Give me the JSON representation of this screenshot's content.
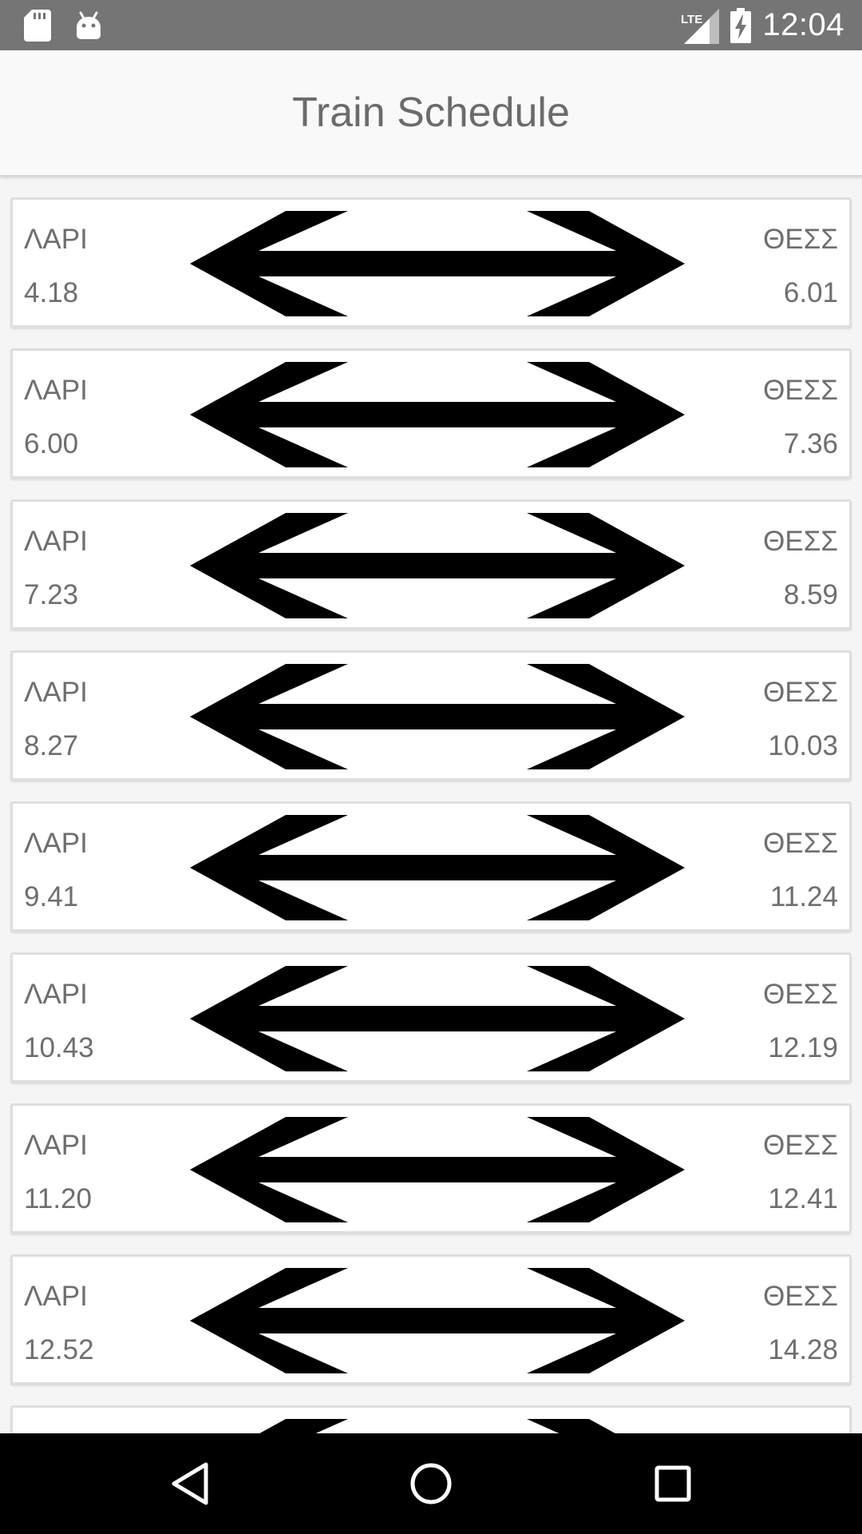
{
  "status_bar": {
    "time": "12:04",
    "network_label": "LTE",
    "left_icons": [
      "sd-card-icon",
      "android-icon"
    ],
    "right_icons": [
      "signal-icon",
      "battery-charging-icon"
    ]
  },
  "app_bar": {
    "title": "Train Schedule"
  },
  "schedule": [
    {
      "from": "ΛΑΡΙ",
      "depart": "4.18",
      "to": "ΘΕΣΣ",
      "arrive": "6.01"
    },
    {
      "from": "ΛΑΡΙ",
      "depart": "6.00",
      "to": "ΘΕΣΣ",
      "arrive": "7.36"
    },
    {
      "from": "ΛΑΡΙ",
      "depart": "7.23",
      "to": "ΘΕΣΣ",
      "arrive": "8.59"
    },
    {
      "from": "ΛΑΡΙ",
      "depart": "8.27",
      "to": "ΘΕΣΣ",
      "arrive": "10.03"
    },
    {
      "from": "ΛΑΡΙ",
      "depart": "9.41",
      "to": "ΘΕΣΣ",
      "arrive": "11.24"
    },
    {
      "from": "ΛΑΡΙ",
      "depart": "10.43",
      "to": "ΘΕΣΣ",
      "arrive": "12.19"
    },
    {
      "from": "ΛΑΡΙ",
      "depart": "11.20",
      "to": "ΘΕΣΣ",
      "arrive": "12.41"
    },
    {
      "from": "ΛΑΡΙ",
      "depart": "12.52",
      "to": "ΘΕΣΣ",
      "arrive": "14.28"
    }
  ],
  "icons": {
    "route_icon": "double-arrow-icon",
    "nav": [
      "back-icon",
      "home-icon",
      "recents-icon"
    ]
  }
}
